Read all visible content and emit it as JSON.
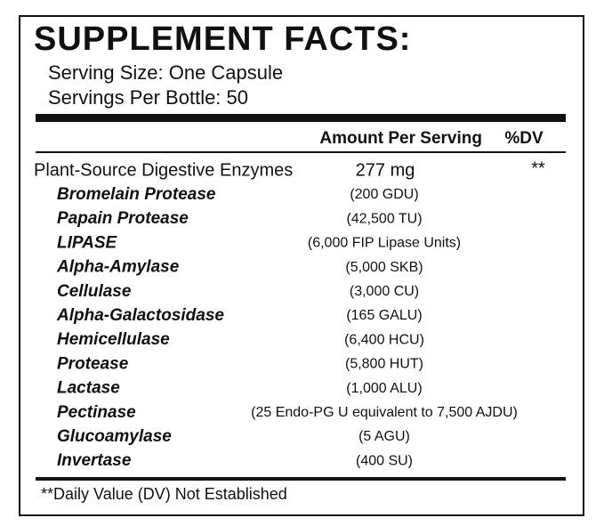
{
  "header": {
    "title": "SUPPLEMENT FACTS:",
    "serving_size": "Serving Size: One Capsule",
    "servings_per_bottle": "Servings Per Bottle: 50"
  },
  "table": {
    "columns": [
      "Amount Per Serving",
      "%DV"
    ],
    "main_row": {
      "name": "Plant-Source Digestive Enzymes",
      "amount": "277 mg",
      "dv": "**"
    },
    "rows": [
      [
        "Bromelain Protease",
        "(200 GDU)"
      ],
      [
        "Papain Protease",
        "(42,500 TU)"
      ],
      [
        "LIPASE",
        "(6,000 FIP Lipase Units)"
      ],
      [
        "Alpha-Amylase",
        "(5,000 SKB)"
      ],
      [
        "Cellulase",
        "(3,000 CU)"
      ],
      [
        "Alpha-Galactosidase",
        "(165 GALU)"
      ],
      [
        "Hemicellulase",
        "(6,400 HCU)"
      ],
      [
        "Protease",
        "(5,800 HUT)"
      ],
      [
        "Lactase",
        "(1,000 ALU)"
      ],
      [
        "Pectinase",
        "(25 Endo-PG U equivalent to 7,500 AJDU)"
      ],
      [
        "Glucoamylase",
        "(5 AGU)"
      ],
      [
        "Invertase",
        "(400 SU)"
      ]
    ]
  },
  "footer": {
    "note": "**Daily Value (DV) Not Established"
  }
}
